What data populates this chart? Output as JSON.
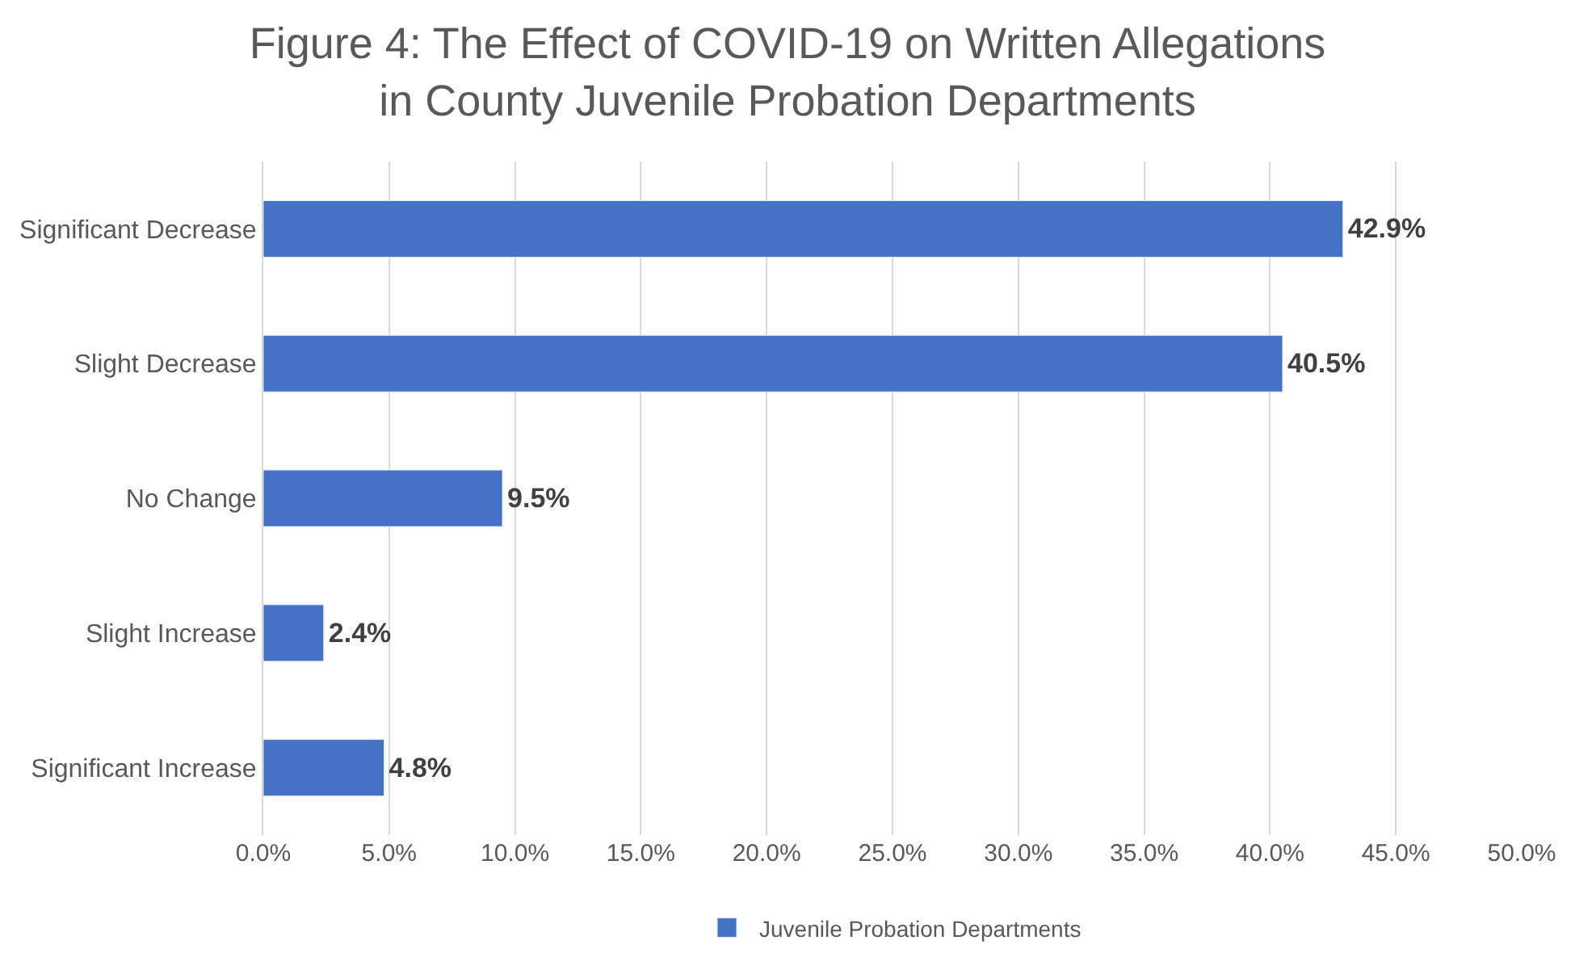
{
  "chart_data": {
    "type": "bar",
    "orientation": "horizontal",
    "title": "Figure 4: The Effect of COVID-19 on Written Allegations\nin County Juvenile Probation Departments",
    "categories": [
      "Significant Decrease",
      "Slight Decrease",
      "No Change",
      "Slight Increase",
      "Significant Increase"
    ],
    "series": [
      {
        "name": "Juvenile Probation Departments",
        "color": "#4472c4",
        "values": [
          42.9,
          40.5,
          9.5,
          2.4,
          4.8
        ],
        "value_labels": [
          "42.9%",
          "40.5%",
          "9.5%",
          "2.4%",
          "4.8%"
        ]
      }
    ],
    "xlim": [
      0,
      50
    ],
    "xticks": [
      {
        "value": 0,
        "label": "0.0%"
      },
      {
        "value": 5,
        "label": "5.0%"
      },
      {
        "value": 10,
        "label": "10.0%"
      },
      {
        "value": 15,
        "label": "15.0%"
      },
      {
        "value": 20,
        "label": "20.0%"
      },
      {
        "value": 25,
        "label": "25.0%"
      },
      {
        "value": 30,
        "label": "30.0%"
      },
      {
        "value": 35,
        "label": "35.0%"
      },
      {
        "value": 40,
        "label": "40.0%"
      },
      {
        "value": 45,
        "label": "45.0%"
      },
      {
        "value": 50,
        "label": "50.0%"
      }
    ],
    "grid": "x",
    "legend": "bottom"
  }
}
